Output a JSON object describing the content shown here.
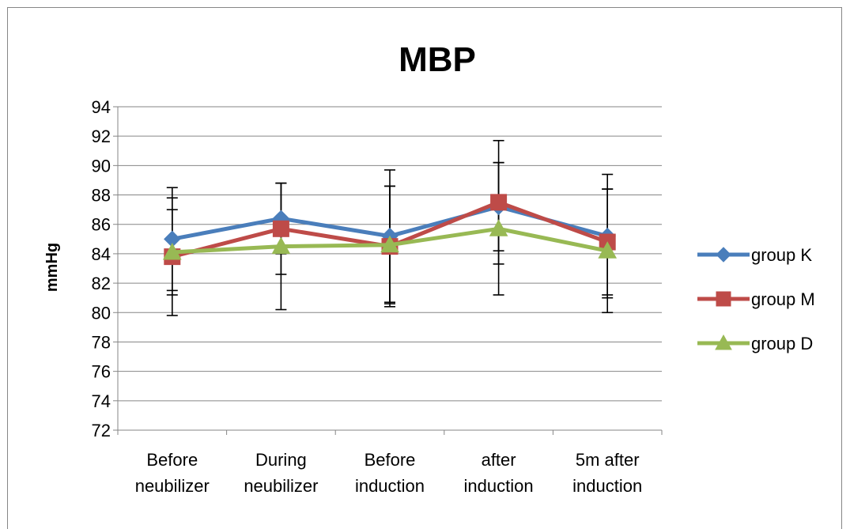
{
  "chart_data": {
    "type": "line",
    "title": "MBP",
    "xlabel": "",
    "ylabel": "mmHg",
    "ylim": [
      72,
      94
    ],
    "ytick_step": 2,
    "y_ticks": [
      "72",
      "74",
      "76",
      "78",
      "80",
      "82",
      "84",
      "86",
      "88",
      "90",
      "92",
      "94"
    ],
    "grid": true,
    "legend_position": "right",
    "categories": [
      [
        "Before",
        "neubilizer"
      ],
      [
        "During",
        "neubilizer"
      ],
      [
        "Before",
        "induction"
      ],
      [
        "after",
        "induction"
      ],
      [
        "5m after",
        "induction"
      ]
    ],
    "series": [
      {
        "name": "group K",
        "color": "#4a7ebb",
        "marker": "diamond",
        "values": [
          85.0,
          86.4,
          85.2,
          87.2,
          85.2
        ],
        "errors": [
          3.5,
          2.4,
          4.5,
          3.0,
          4.2
        ]
      },
      {
        "name": "group M",
        "color": "#be4b48",
        "marker": "square",
        "values": [
          83.8,
          85.7,
          84.5,
          87.5,
          84.8
        ],
        "errors": [
          4.0,
          3.1,
          4.1,
          4.2,
          3.6
        ]
      },
      {
        "name": "group D",
        "color": "#98b954",
        "marker": "triangle",
        "values": [
          84.1,
          84.5,
          84.6,
          85.7,
          84.2
        ],
        "errors": [
          2.9,
          4.3,
          4.0,
          4.5,
          4.2
        ]
      }
    ]
  }
}
